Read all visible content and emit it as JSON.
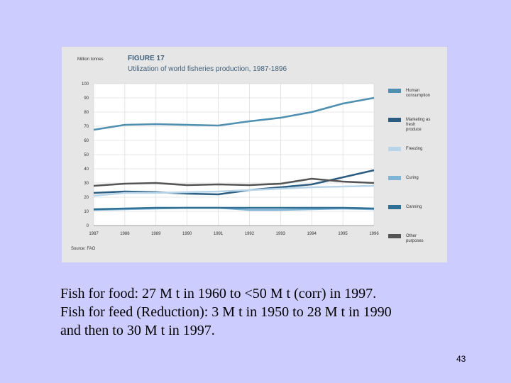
{
  "figure": {
    "units_label": "Million tonnes",
    "number": "FIGURE 17",
    "title": "Utilization of world fisheries production, 1987-1896",
    "source": "Source: FAO"
  },
  "chart_data": {
    "type": "line",
    "title": "Utilization of world fisheries production, 1987-1896",
    "ylabel": "Million tonnes",
    "xlabel": "",
    "x": [
      "1987",
      "1988",
      "1989",
      "1990",
      "1991",
      "1992",
      "1993",
      "1994",
      "1995",
      "1996"
    ],
    "ylim": [
      0,
      100
    ],
    "yticks": [
      0,
      10,
      20,
      30,
      40,
      50,
      60,
      70,
      80,
      90,
      100
    ],
    "grid": true,
    "legend_position": "right",
    "series": [
      {
        "name": "Human consumption",
        "color": "#4f8fb0",
        "values": [
          67.5,
          71,
          71.5,
          71,
          70.5,
          73.5,
          76,
          80,
          86,
          90
        ]
      },
      {
        "name": "Marketing as fresh produce",
        "color": "#2c5d80",
        "values": [
          23,
          24,
          23.5,
          22.5,
          22,
          25,
          27,
          29,
          34,
          39
        ]
      },
      {
        "name": "Freezing",
        "color": "#b8d4e8",
        "values": [
          21,
          23,
          23,
          23.5,
          24,
          25,
          26,
          27,
          27.5,
          28
        ]
      },
      {
        "name": "Curing",
        "color": "#7fb4d6",
        "values": [
          11,
          11.5,
          12,
          12.5,
          12.5,
          11,
          11,
          11.5,
          12,
          11.5
        ]
      },
      {
        "name": "Canning",
        "color": "#2f6f93",
        "values": [
          11.5,
          12,
          12.5,
          12.5,
          12.5,
          12.5,
          12.5,
          12.5,
          12.5,
          12
        ]
      },
      {
        "name": "Other purposes",
        "color": "#555555",
        "values": [
          28,
          29.5,
          30,
          28.5,
          29,
          28.5,
          29.5,
          33,
          31,
          30
        ]
      }
    ]
  },
  "text": {
    "line1": "Fish for food: 27 M t in 1960 to <50 M t (corr) in 1997.",
    "line2": "Fish for feed (Reduction): 3 M t in 1950 to 28 M t in 1990",
    "line3": "and then to 30 M t in 1997."
  },
  "page_number": "43"
}
